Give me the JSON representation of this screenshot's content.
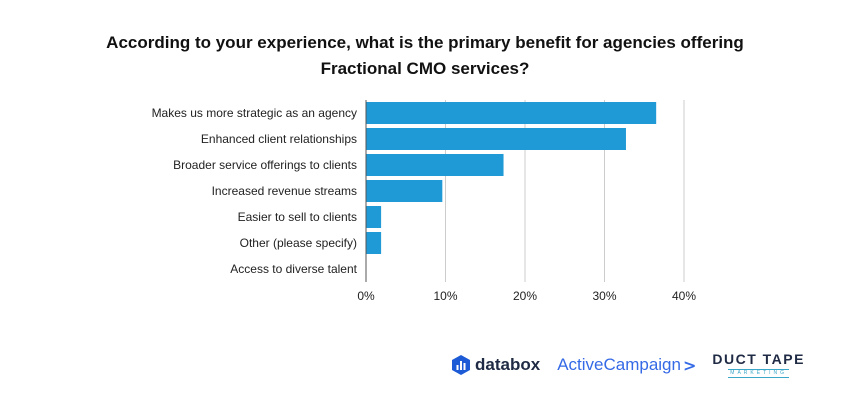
{
  "chart_data": {
    "type": "bar",
    "orientation": "horizontal",
    "title": "According to your experience, what is the primary benefit for agencies offering Fractional CMO services?",
    "title_lines": [
      "According to your experience, what is the primary benefit for agencies offering",
      "Fractional CMO services?"
    ],
    "categories": [
      "Makes us more strategic as an agency",
      "Enhanced client relationships",
      "Broader service offerings to clients",
      "Increased revenue streams",
      "Easier to sell to clients",
      "Other (please specify)",
      "Access to diverse talent"
    ],
    "values": [
      36.5,
      32.7,
      17.3,
      9.6,
      1.9,
      1.9,
      0
    ],
    "xlim": [
      0,
      40
    ],
    "xticks": [
      0,
      10,
      20,
      30,
      40
    ],
    "xtick_labels": [
      "0%",
      "10%",
      "20%",
      "30%",
      "40%"
    ],
    "xlabel": "",
    "ylabel": "",
    "grid": true,
    "bar_color": "#1f9ad6",
    "grid_color": "#cccccc"
  },
  "logos": {
    "databox": "databox",
    "activecampaign": "ActiveCampaign",
    "activecampaign_chevron": ">",
    "ducttape_main": "DUCT TAPE",
    "ducttape_sub": "MARKETING"
  }
}
